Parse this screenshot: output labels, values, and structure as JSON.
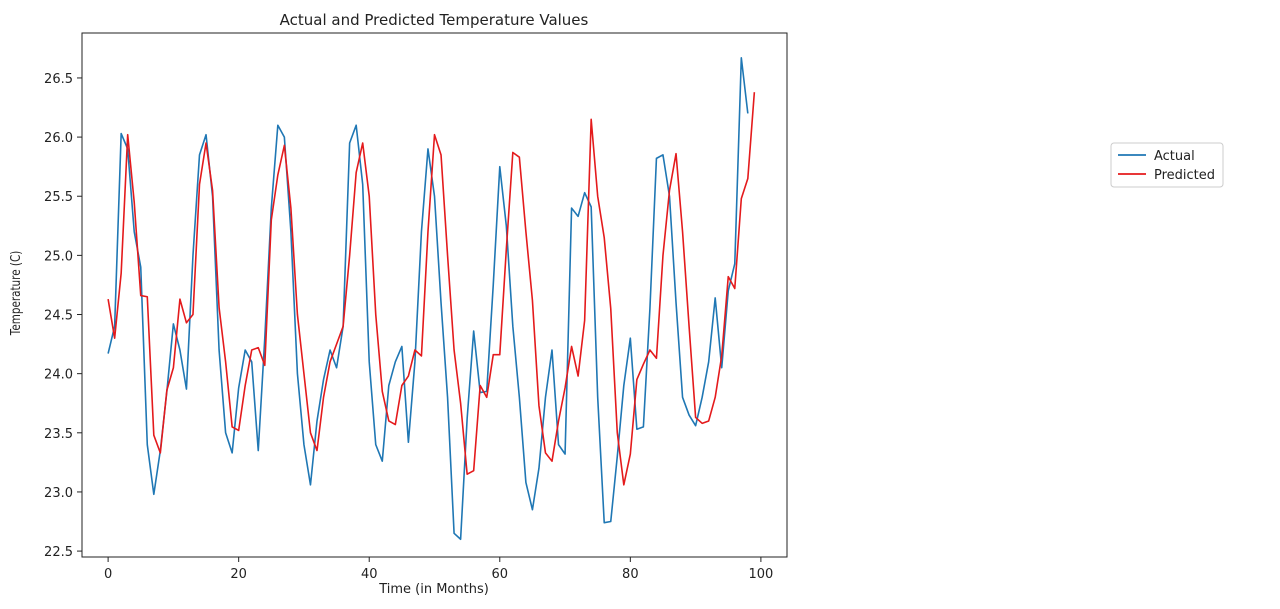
{
  "chart_data": {
    "type": "line",
    "title": "Actual and Predicted Temperature Values",
    "xlabel": "Time (in Months)",
    "ylabel": "Temperature (C)",
    "xlim": [
      -4,
      104
    ],
    "ylim": [
      22.45,
      26.88
    ],
    "x_ticks": [
      0,
      20,
      40,
      60,
      80,
      100
    ],
    "y_ticks": [
      22.5,
      23.0,
      23.5,
      24.0,
      24.5,
      25.0,
      25.5,
      26.0,
      26.5
    ],
    "grid": false,
    "legend_placement": "outside-right",
    "x": [
      0,
      1,
      2,
      3,
      4,
      5,
      6,
      7,
      8,
      9,
      10,
      11,
      12,
      13,
      14,
      15,
      16,
      17,
      18,
      19,
      20,
      21,
      22,
      23,
      24,
      25,
      26,
      27,
      28,
      29,
      30,
      31,
      32,
      33,
      34,
      35,
      36,
      37,
      38,
      39,
      40,
      41,
      42,
      43,
      44,
      45,
      46,
      47,
      48,
      49,
      50,
      51,
      52,
      53,
      54,
      55,
      56,
      57,
      58,
      59,
      60,
      61,
      62,
      63,
      64,
      65,
      66,
      67,
      68,
      69,
      70,
      71,
      72,
      73,
      74,
      75,
      76,
      77,
      78,
      79,
      80,
      81,
      82,
      83,
      84,
      85,
      86,
      87,
      88,
      89,
      90,
      91,
      92,
      93,
      94,
      95,
      96,
      97,
      98,
      99
    ],
    "series": [
      {
        "name": "Actual",
        "color": "#1f77b4",
        "values": [
          24.17,
          24.4,
          26.03,
          25.9,
          25.2,
          24.9,
          23.4,
          22.98,
          23.35,
          23.85,
          24.42,
          24.2,
          23.87,
          25.0,
          25.85,
          26.02,
          25.5,
          24.2,
          23.5,
          23.33,
          23.88,
          24.2,
          24.1,
          23.35,
          24.3,
          25.4,
          26.1,
          26.0,
          25.2,
          24.0,
          23.4,
          23.06,
          23.6,
          23.95,
          24.2,
          24.05,
          24.4,
          25.95,
          26.1,
          25.6,
          24.1,
          23.4,
          23.26,
          23.9,
          24.1,
          24.23,
          23.42,
          24.1,
          25.2,
          25.9,
          25.5,
          24.6,
          23.8,
          22.65,
          22.6,
          23.62,
          24.36,
          23.84,
          23.85,
          24.75,
          25.75,
          25.25,
          24.4,
          23.8,
          23.08,
          22.85,
          23.2,
          23.8,
          24.2,
          23.4,
          23.32,
          25.4,
          25.33,
          25.53,
          25.41,
          23.8,
          22.74,
          22.75,
          23.3,
          23.9,
          24.3,
          23.53,
          23.55,
          24.55,
          25.82,
          25.85,
          25.5,
          24.6,
          23.8,
          23.65,
          23.56,
          23.8,
          24.1,
          24.64,
          24.05,
          24.7,
          24.93,
          26.67,
          26.2,
          null
        ]
      },
      {
        "name": "Predicted",
        "color": "#e41a1c",
        "values": [
          24.63,
          24.3,
          24.85,
          26.02,
          25.45,
          24.66,
          24.65,
          23.48,
          23.33,
          23.86,
          24.05,
          24.63,
          24.43,
          24.5,
          25.6,
          25.95,
          25.55,
          24.56,
          24.1,
          23.55,
          23.52,
          23.9,
          24.2,
          24.22,
          24.07,
          25.3,
          25.68,
          25.93,
          25.4,
          24.5,
          24.0,
          23.5,
          23.35,
          23.8,
          24.1,
          24.25,
          24.4,
          25.0,
          25.7,
          25.95,
          25.5,
          24.5,
          23.85,
          23.6,
          23.57,
          23.9,
          23.98,
          24.2,
          24.15,
          25.2,
          26.02,
          25.85,
          25.0,
          24.2,
          23.75,
          23.15,
          23.18,
          23.9,
          23.8,
          24.16,
          24.16,
          25.05,
          25.87,
          25.83,
          25.2,
          24.62,
          23.73,
          23.33,
          23.26,
          23.6,
          23.88,
          24.23,
          23.98,
          24.45,
          26.15,
          25.5,
          25.15,
          24.55,
          23.5,
          23.06,
          23.32,
          23.95,
          24.08,
          24.2,
          24.13,
          25.0,
          25.55,
          25.86,
          25.2,
          24.4,
          23.63,
          23.58,
          23.6,
          23.8,
          24.15,
          24.82,
          24.72,
          25.48,
          25.65,
          26.38
        ]
      }
    ]
  }
}
